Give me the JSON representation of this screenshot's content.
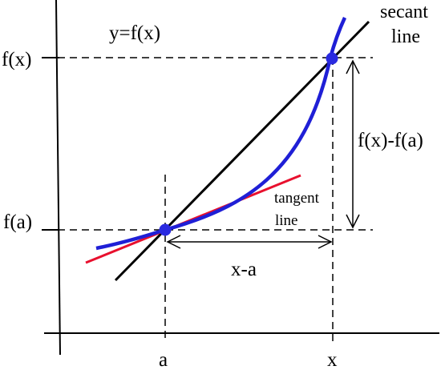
{
  "diagram": {
    "curve_label": "y=f(x)",
    "secant_label_line1": "secant",
    "secant_label_line2": "line",
    "tangent_label_line1": "tangent",
    "tangent_label_line2": "line",
    "rise_label": "f(x)-f(a)",
    "run_label": "x-a",
    "y_tick_upper": "f(x)",
    "y_tick_lower": "f(a)",
    "x_tick_left": "a",
    "x_tick_right": "x",
    "colors": {
      "curve": "#1f1fd6",
      "tangent": "#e8102e",
      "secant": "#000000",
      "points": "#2a2ae0",
      "axes": "#000000"
    }
  }
}
